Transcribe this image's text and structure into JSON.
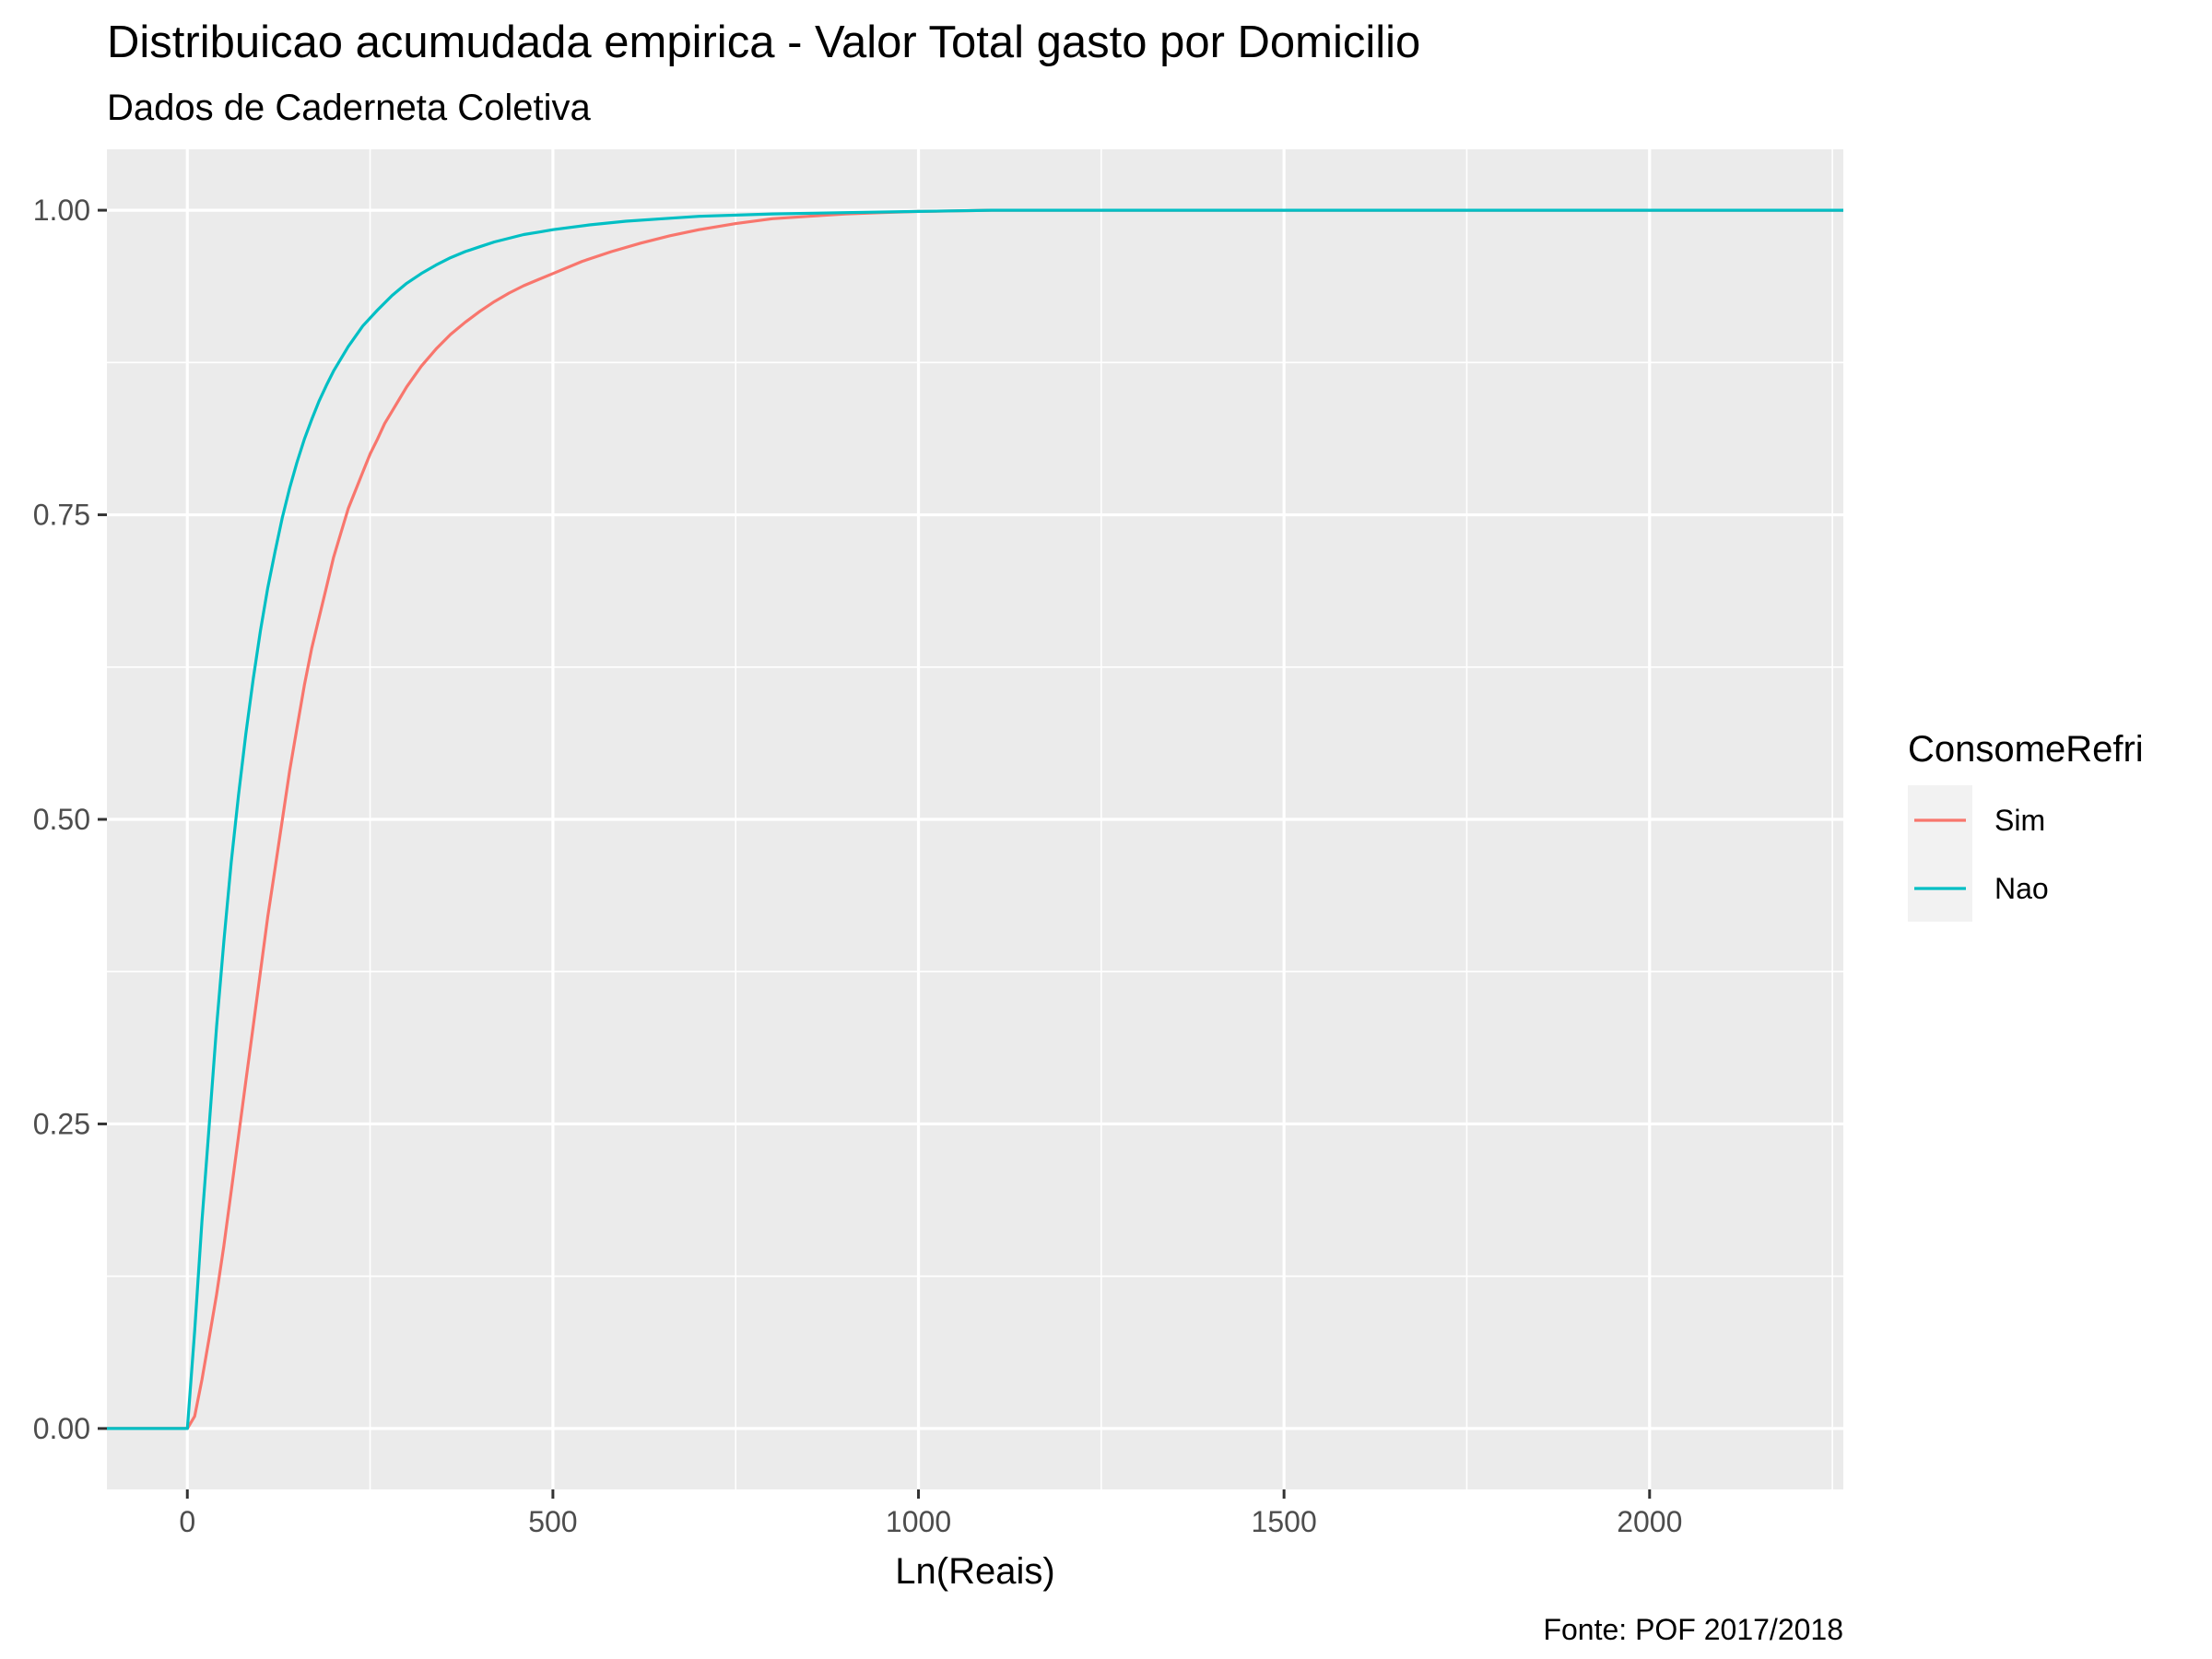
{
  "chart_data": {
    "type": "line",
    "title": "Distribuicao acumudada empirica - Valor Total gasto por Domicilio",
    "subtitle": "Dados de Caderneta Coletiva",
    "xlabel": "Ln(Reais)",
    "ylabel": "",
    "caption": "Fonte: POF 2017/2018",
    "xlim": [
      -110,
      2265
    ],
    "ylim": [
      -0.05,
      1.05
    ],
    "x_ticks": [
      0,
      500,
      1000,
      1500,
      2000
    ],
    "x_tick_labels": [
      "0",
      "500",
      "1000",
      "1500",
      "2000"
    ],
    "y_ticks": [
      0,
      0.25,
      0.5,
      0.75,
      1
    ],
    "y_tick_labels": [
      "0.00",
      "0.25",
      "0.50",
      "0.75",
      "1.00"
    ],
    "grid": true,
    "legend": {
      "title": "ConsomeRefri",
      "position": "right"
    },
    "series": [
      {
        "name": "Sim",
        "color": "#F8766D",
        "x": [
          -110,
          0,
          10,
          20,
          30,
          40,
          50,
          60,
          70,
          80,
          90,
          100,
          110,
          120,
          130,
          140,
          150,
          160,
          170,
          180,
          190,
          200,
          210,
          220,
          230,
          240,
          250,
          260,
          270,
          280,
          290,
          300,
          320,
          340,
          360,
          380,
          400,
          420,
          440,
          460,
          480,
          500,
          540,
          580,
          620,
          660,
          700,
          750,
          800,
          850,
          900,
          950,
          1000,
          1050,
          1100,
          1200,
          1400,
          1600,
          1800,
          2000,
          2265
        ],
        "y": [
          0,
          0,
          0.01,
          0.04,
          0.075,
          0.11,
          0.15,
          0.195,
          0.24,
          0.285,
          0.33,
          0.375,
          0.42,
          0.46,
          0.5,
          0.54,
          0.575,
          0.61,
          0.64,
          0.665,
          0.69,
          0.715,
          0.735,
          0.755,
          0.77,
          0.785,
          0.8,
          0.812,
          0.825,
          0.835,
          0.845,
          0.855,
          0.872,
          0.886,
          0.898,
          0.908,
          0.917,
          0.925,
          0.932,
          0.938,
          0.943,
          0.948,
          0.958,
          0.966,
          0.973,
          0.979,
          0.984,
          0.989,
          0.993,
          0.995,
          0.997,
          0.998,
          0.999,
          0.9995,
          1,
          1,
          1,
          1,
          1,
          1,
          1
        ]
      },
      {
        "name": "Nao",
        "color": "#00BFC4",
        "x": [
          -110,
          0,
          10,
          20,
          30,
          40,
          50,
          60,
          70,
          80,
          90,
          100,
          110,
          120,
          130,
          140,
          150,
          160,
          170,
          180,
          190,
          200,
          220,
          240,
          260,
          280,
          300,
          320,
          340,
          360,
          380,
          400,
          420,
          440,
          460,
          480,
          500,
          550,
          600,
          650,
          700,
          800,
          900,
          1000,
          1100,
          1200,
          1400,
          1600,
          1800,
          2000,
          2265
        ],
        "y": [
          0,
          0,
          0.08,
          0.17,
          0.25,
          0.33,
          0.4,
          0.465,
          0.52,
          0.57,
          0.615,
          0.655,
          0.69,
          0.72,
          0.748,
          0.772,
          0.793,
          0.812,
          0.828,
          0.843,
          0.856,
          0.868,
          0.888,
          0.905,
          0.918,
          0.93,
          0.94,
          0.948,
          0.955,
          0.961,
          0.966,
          0.97,
          0.974,
          0.977,
          0.98,
          0.982,
          0.984,
          0.988,
          0.991,
          0.993,
          0.995,
          0.997,
          0.998,
          0.999,
          1,
          1,
          1,
          1,
          1,
          1,
          1
        ]
      }
    ]
  }
}
